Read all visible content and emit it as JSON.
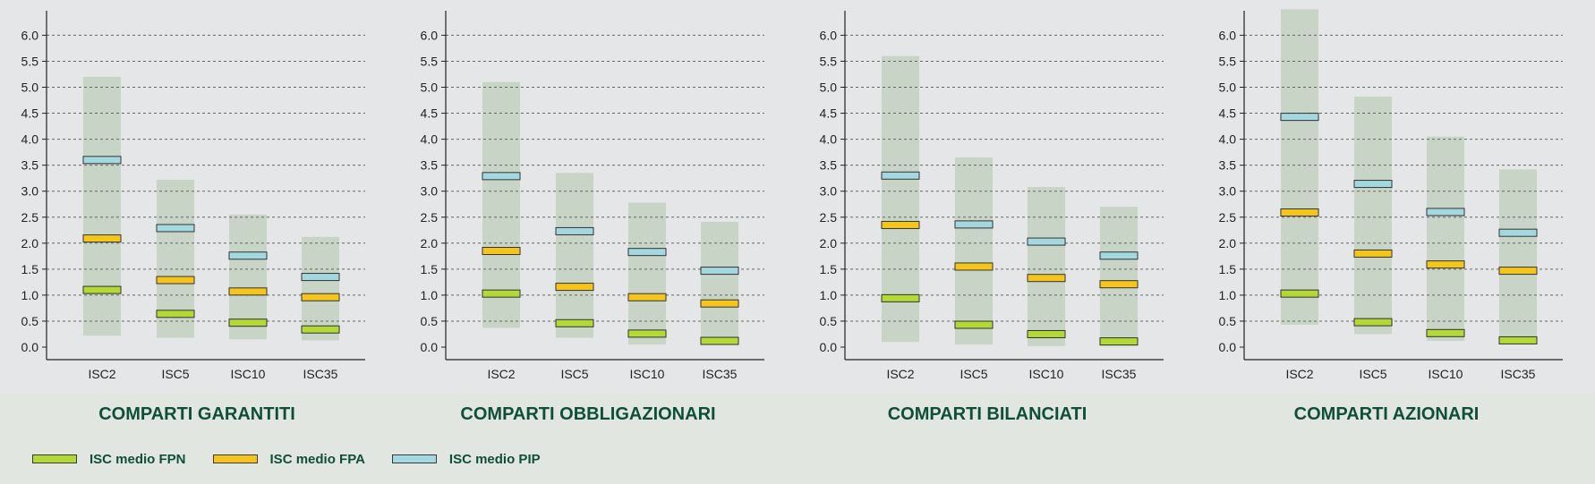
{
  "chart_data": [
    {
      "type": "bar",
      "title": "COMPARTI GARANTITI",
      "categories": [
        "ISC2",
        "ISC5",
        "ISC10",
        "ISC35"
      ],
      "ylim": [
        0,
        6.5
      ],
      "yticks": [
        "0.0",
        "0.5",
        "1.0",
        "1.5",
        "2.0",
        "2.5",
        "3.0",
        "3.5",
        "4.0",
        "4.5",
        "5.0",
        "5.5",
        "6.0"
      ],
      "range": [
        [
          0.22,
          5.2
        ],
        [
          0.18,
          3.22
        ],
        [
          0.15,
          2.55
        ],
        [
          0.13,
          2.12
        ]
      ],
      "series": [
        {
          "name": "ISC medio FPN",
          "values": [
            1.1,
            0.64,
            0.47,
            0.34
          ]
        },
        {
          "name": "ISC medio FPA",
          "values": [
            2.09,
            1.29,
            1.07,
            0.96
          ]
        },
        {
          "name": "ISC medio PIP",
          "values": [
            3.6,
            2.29,
            1.76,
            1.35
          ]
        }
      ]
    },
    {
      "type": "bar",
      "title": "COMPARTI OBBLIGAZIONARI",
      "categories": [
        "ISC2",
        "ISC5",
        "ISC10",
        "ISC35"
      ],
      "ylim": [
        0,
        6.5
      ],
      "yticks": [
        "0.0",
        "0.5",
        "1.0",
        "1.5",
        "2.0",
        "2.5",
        "3.0",
        "3.5",
        "4.0",
        "4.5",
        "5.0",
        "5.5",
        "6.0"
      ],
      "range": [
        [
          0.37,
          5.1
        ],
        [
          0.18,
          3.35
        ],
        [
          0.05,
          2.78
        ],
        [
          0.04,
          2.41
        ]
      ],
      "series": [
        {
          "name": "ISC medio FPN",
          "values": [
            1.03,
            0.46,
            0.26,
            0.12
          ]
        },
        {
          "name": "ISC medio FPA",
          "values": [
            1.85,
            1.16,
            0.96,
            0.84
          ]
        },
        {
          "name": "ISC medio PIP",
          "values": [
            3.29,
            2.23,
            1.83,
            1.47
          ]
        }
      ]
    },
    {
      "type": "bar",
      "title": "COMPARTI BILANCIATI",
      "categories": [
        "ISC2",
        "ISC5",
        "ISC10",
        "ISC35"
      ],
      "ylim": [
        0,
        6.5
      ],
      "yticks": [
        "0.0",
        "0.5",
        "1.0",
        "1.5",
        "2.0",
        "2.5",
        "3.0",
        "3.5",
        "4.0",
        "4.5",
        "5.0",
        "5.5",
        "6.0"
      ],
      "range": [
        [
          0.1,
          5.6
        ],
        [
          0.05,
          3.65
        ],
        [
          0.02,
          3.08
        ],
        [
          0.02,
          2.7
        ]
      ],
      "series": [
        {
          "name": "ISC medio FPN",
          "values": [
            0.94,
            0.43,
            0.25,
            0.11
          ]
        },
        {
          "name": "ISC medio FPA",
          "values": [
            2.35,
            1.55,
            1.33,
            1.21
          ]
        },
        {
          "name": "ISC medio PIP",
          "values": [
            3.3,
            2.36,
            2.03,
            1.76
          ]
        }
      ]
    },
    {
      "type": "bar",
      "title": "COMPARTI AZIONARI",
      "categories": [
        "ISC2",
        "ISC5",
        "ISC10",
        "ISC35"
      ],
      "ylim": [
        0,
        6.5
      ],
      "yticks": [
        "0.0",
        "0.5",
        "1.0",
        "1.5",
        "2.0",
        "2.5",
        "3.0",
        "3.5",
        "4.0",
        "4.5",
        "5.0",
        "5.5",
        "6.0"
      ],
      "range": [
        [
          0.43,
          6.5
        ],
        [
          0.25,
          4.82
        ],
        [
          0.12,
          4.05
        ],
        [
          0.07,
          3.42
        ]
      ],
      "series": [
        {
          "name": "ISC medio FPN",
          "values": [
            1.03,
            0.48,
            0.27,
            0.13
          ]
        },
        {
          "name": "ISC medio FPA",
          "values": [
            2.59,
            1.8,
            1.59,
            1.47
          ]
        },
        {
          "name": "ISC medio PIP",
          "values": [
            4.43,
            3.14,
            2.6,
            2.2
          ]
        }
      ]
    }
  ],
  "legend": [
    {
      "label": "ISC medio FPN",
      "color": "#b2d935"
    },
    {
      "label": "ISC medio FPA",
      "color": "#f5c51c"
    },
    {
      "label": "ISC medio PIP",
      "color": "#a4d8e1"
    }
  ],
  "colors": {
    "range_band": "#c8d4c6",
    "FPN": "#b2d935",
    "FPA": "#f5c51c",
    "PIP": "#a4d8e1",
    "axis": "#222222",
    "grid": "#666666",
    "title": "#0f4f3a",
    "marker_border": "#333333"
  }
}
